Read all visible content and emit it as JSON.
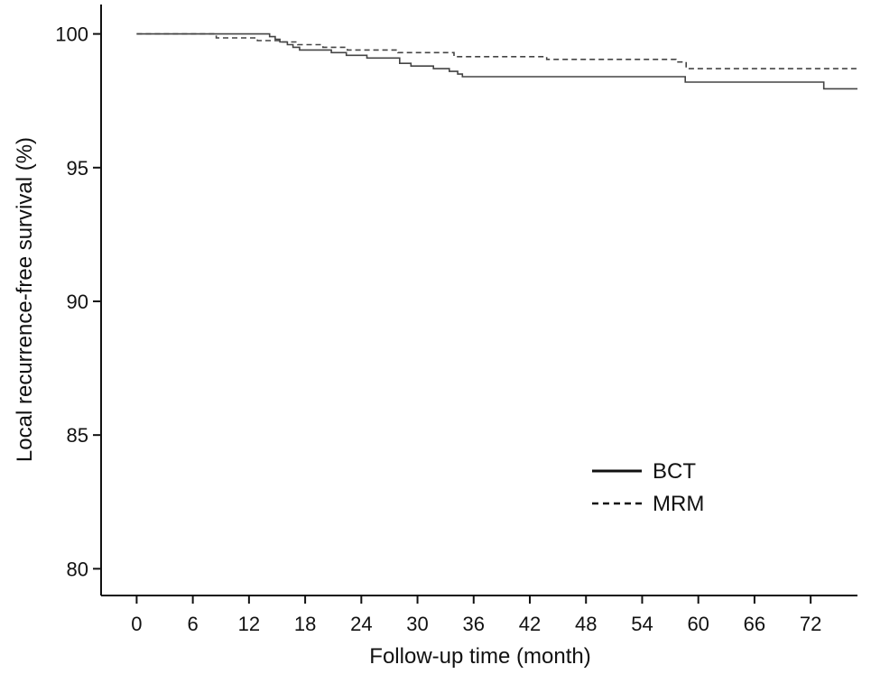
{
  "chart_data": {
    "type": "line",
    "xlabel": "Follow-up time (month)",
    "ylabel": "Local recurrence-free survival (%)",
    "xlim": [
      -3.8,
      77
    ],
    "ylim": [
      79,
      101.1
    ],
    "xticks": [
      0,
      6,
      12,
      18,
      24,
      30,
      36,
      42,
      48,
      54,
      60,
      66,
      72
    ],
    "yticks": [
      80,
      85,
      90,
      95,
      100
    ],
    "legend_position": "lower-right",
    "grid": false,
    "series": [
      {
        "name": "BCT",
        "line_style": "solid",
        "color": "#444444",
        "step": true,
        "x": [
          0,
          14.2,
          14.8,
          15.3,
          16.1,
          16.7,
          17.4,
          20.8,
          22.4,
          24.6,
          28.1,
          29.3,
          31.7,
          33.4,
          34.3,
          34.8,
          58.6,
          73.4,
          77
        ],
        "y": [
          100,
          99.9,
          99.8,
          99.7,
          99.6,
          99.5,
          99.4,
          99.3,
          99.2,
          99.1,
          98.9,
          98.8,
          98.7,
          98.6,
          98.5,
          98.4,
          98.2,
          97.95,
          97.95
        ]
      },
      {
        "name": "MRM",
        "line_style": "dashed",
        "color": "#444444",
        "step": true,
        "x": [
          0,
          8.5,
          12.9,
          15.3,
          17.2,
          19.9,
          22.5,
          27.9,
          33.9,
          43.8,
          57.6,
          58.7,
          77
        ],
        "y": [
          100,
          99.85,
          99.75,
          99.7,
          99.6,
          99.5,
          99.4,
          99.3,
          99.15,
          99.05,
          98.95,
          98.7,
          98.7
        ]
      }
    ]
  }
}
